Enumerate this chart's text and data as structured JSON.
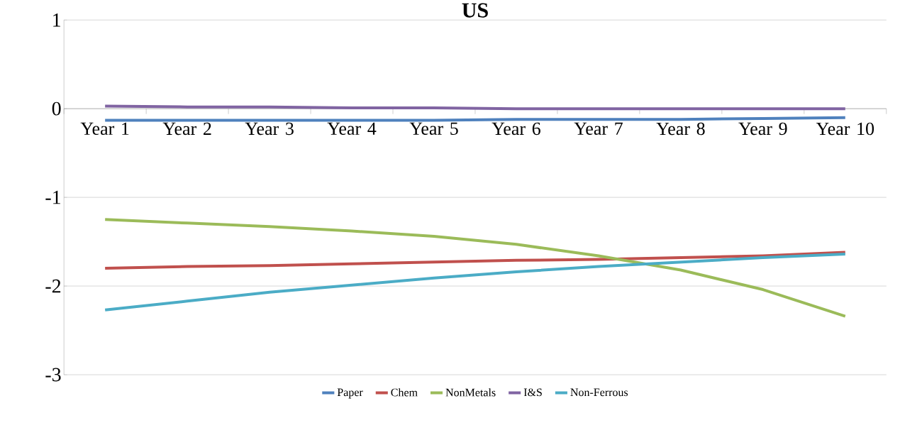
{
  "chart_data": {
    "type": "line",
    "title": "US",
    "categories": [
      "Year 1",
      "Year 2",
      "Year 3",
      "Year 4",
      "Year 5",
      "Year 6",
      "Year 7",
      "Year 8",
      "Year 9",
      "Year 10"
    ],
    "series": [
      {
        "name": "Paper",
        "color": "#4f81bd",
        "values": [
          -0.13,
          -0.13,
          -0.13,
          -0.13,
          -0.13,
          -0.12,
          -0.12,
          -0.12,
          -0.11,
          -0.1
        ]
      },
      {
        "name": "Chem",
        "color": "#c0504d",
        "values": [
          -1.8,
          -1.78,
          -1.77,
          -1.75,
          -1.73,
          -1.71,
          -1.7,
          -1.68,
          -1.66,
          -1.62
        ]
      },
      {
        "name": "NonMetals",
        "color": "#9bbb59",
        "values": [
          -1.25,
          -1.29,
          -1.33,
          -1.38,
          -1.44,
          -1.53,
          -1.66,
          -1.82,
          -2.04,
          -2.34
        ]
      },
      {
        "name": "I&S",
        "color": "#8064a2",
        "values": [
          0.03,
          0.02,
          0.02,
          0.01,
          0.01,
          0.0,
          0.0,
          0.0,
          0.0,
          0.0
        ]
      },
      {
        "name": "Non-Ferrous",
        "color": "#4bacc6",
        "values": [
          -2.27,
          -2.17,
          -2.07,
          -1.99,
          -1.91,
          -1.84,
          -1.78,
          -1.73,
          -1.68,
          -1.64
        ]
      }
    ],
    "ylim": [
      -3,
      1
    ],
    "yticks": [
      -3,
      -2,
      -1,
      0,
      1
    ],
    "grid": "y",
    "legend": "bottom",
    "marker": "none",
    "line_style": "solid"
  }
}
